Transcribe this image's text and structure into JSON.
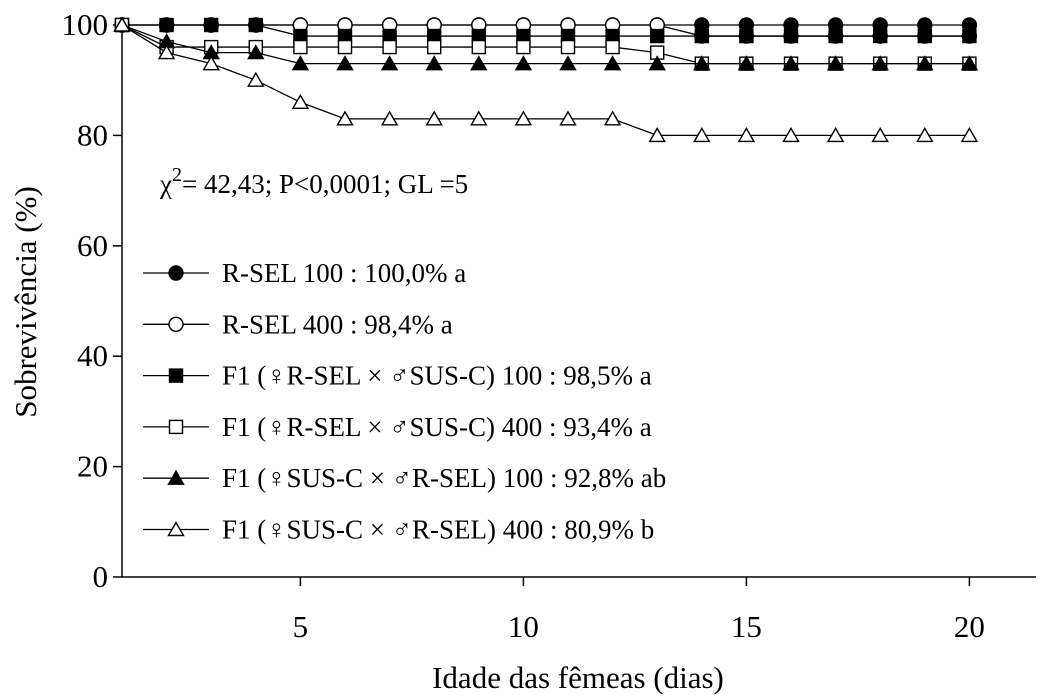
{
  "chart_data": {
    "type": "line",
    "xlabel": "Idade das fêmeas (dias)",
    "ylabel": "Sobrevivência (%)",
    "xlim": [
      1,
      21
    ],
    "ylim": [
      0,
      100
    ],
    "x_ticks": [
      5,
      10,
      15,
      20
    ],
    "y_ticks": [
      0,
      20,
      40,
      60,
      80,
      100
    ],
    "grid": false,
    "legend_position": "lower-left",
    "annotation": {
      "chi": "χ",
      "sup": "2",
      "rest": "= 42,43; P<0,0001; GL =5"
    },
    "x": [
      1,
      2,
      3,
      4,
      5,
      6,
      7,
      8,
      9,
      10,
      11,
      12,
      13,
      14,
      15,
      16,
      17,
      18,
      19,
      20
    ],
    "series": [
      {
        "name": "R-SEL 100 : 100,0% a",
        "marker": "circle",
        "filled": true,
        "values": [
          100,
          100,
          100,
          100,
          100,
          100,
          100,
          100,
          100,
          100,
          100,
          100,
          100,
          100,
          100,
          100,
          100,
          100,
          100,
          100
        ]
      },
      {
        "name": "R-SEL 400 : 98,4% a",
        "marker": "circle",
        "filled": false,
        "values": [
          100,
          100,
          100,
          100,
          100,
          100,
          100,
          100,
          100,
          100,
          100,
          100,
          100,
          98,
          98,
          98,
          98,
          98,
          98,
          98
        ]
      },
      {
        "name": "F1 (♀R-SEL × ♂SUS-C) 100 : 98,5% a",
        "marker": "square",
        "filled": true,
        "values": [
          100,
          100,
          100,
          100,
          98,
          98,
          98,
          98,
          98,
          98,
          98,
          98,
          98,
          98,
          98,
          98,
          98,
          98,
          98,
          98
        ]
      },
      {
        "name": "F1 (♀R-SEL × ♂SUS-C) 400 : 93,4% a",
        "marker": "square",
        "filled": false,
        "values": [
          100,
          96,
          96,
          96,
          96,
          96,
          96,
          96,
          96,
          96,
          96,
          96,
          95,
          93,
          93,
          93,
          93,
          93,
          93,
          93
        ]
      },
      {
        "name": "F1 (♀SUS-C × ♂R-SEL) 100 : 92,8% ab",
        "marker": "triangle",
        "filled": true,
        "values": [
          100,
          97,
          95,
          95,
          93,
          93,
          93,
          93,
          93,
          93,
          93,
          93,
          93,
          93,
          93,
          93,
          93,
          93,
          93,
          93
        ]
      },
      {
        "name": "F1 (♀SUS-C × ♂R-SEL) 400 : 80,9% b",
        "marker": "triangle",
        "filled": false,
        "values": [
          100,
          95,
          93,
          90,
          86,
          83,
          83,
          83,
          83,
          83,
          83,
          83,
          80,
          80,
          80,
          80,
          80,
          80,
          80,
          80
        ]
      }
    ]
  }
}
